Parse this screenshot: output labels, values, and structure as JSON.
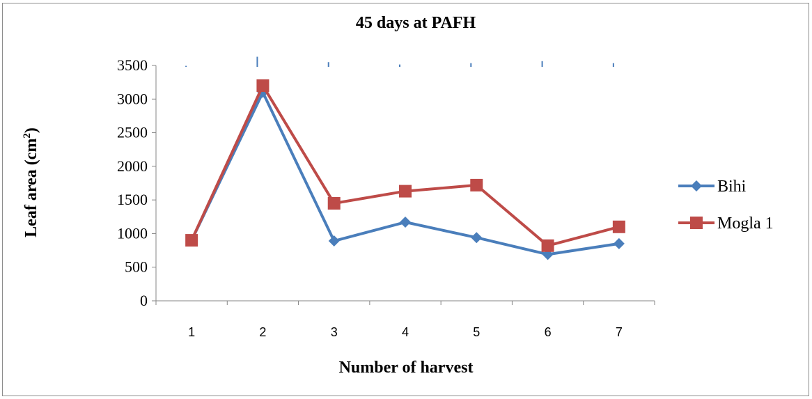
{
  "chart_data": {
    "type": "line",
    "title": "45 days at PAFH",
    "xlabel": "Number of harvest",
    "ylabel_main": "Leaf area (cm",
    "ylabel_sup": "2",
    "ylabel_close": ")",
    "categories": [
      "1",
      "2",
      "3",
      "4",
      "5",
      "6",
      "7"
    ],
    "ylim": [
      0,
      3500
    ],
    "yticks": [
      0,
      500,
      1000,
      1500,
      2000,
      2500,
      3000,
      3500
    ],
    "grid": false,
    "legend_position": "right",
    "series": [
      {
        "name": "Bihi",
        "color": "#4a7ebb",
        "marker": "diamond",
        "values": [
          900,
          3100,
          890,
          1170,
          940,
          690,
          850
        ]
      },
      {
        "name": "Mogla 1",
        "color": "#be4b48",
        "marker": "square",
        "values": [
          900,
          3200,
          1450,
          1630,
          1720,
          820,
          1100
        ]
      }
    ],
    "error_bars": {
      "color": "#4a7ebb",
      "values": [
        15,
        150,
        70,
        35,
        55,
        85,
        55
      ],
      "direction": "up-from-top"
    }
  }
}
